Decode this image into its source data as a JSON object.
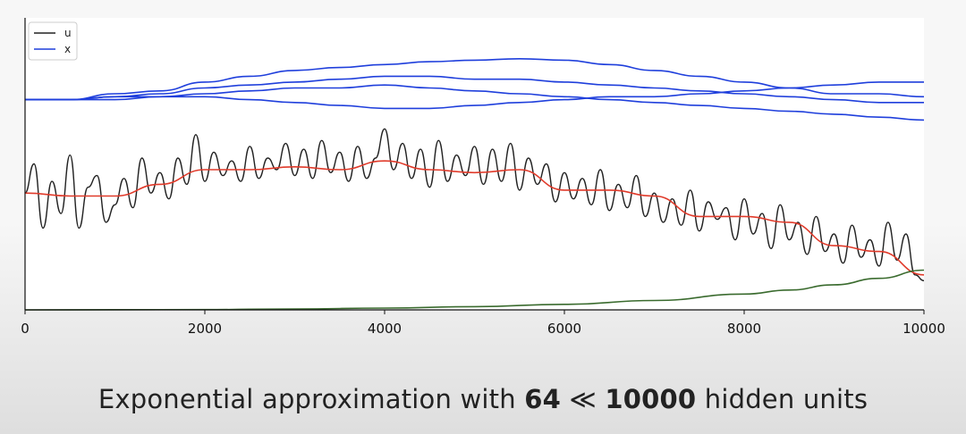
{
  "chart_data": {
    "type": "line",
    "xlim": [
      0,
      10000
    ],
    "xticks": [
      0,
      2000,
      4000,
      6000,
      8000,
      10000
    ],
    "tick_labels": [
      "0",
      "2000",
      "4000",
      "6000",
      "8000",
      "10000"
    ],
    "legend": {
      "placement": "top-left",
      "entries": [
        {
          "label": "u",
          "color": "#222222"
        },
        {
          "label": "x",
          "color": "#1f3fdc"
        }
      ]
    },
    "series": [
      {
        "name": "x",
        "color": "#1f3fdc",
        "x": [
          0,
          500,
          1000,
          1500,
          2000,
          2500,
          3000,
          3500,
          4000,
          4500,
          5000,
          5500,
          6000,
          6500,
          7000,
          7500,
          8000,
          8500,
          9000,
          9500,
          10000
        ],
        "values": [
          0.72,
          0.72,
          0.74,
          0.75,
          0.78,
          0.8,
          0.82,
          0.83,
          0.84,
          0.85,
          0.855,
          0.86,
          0.855,
          0.84,
          0.82,
          0.8,
          0.78,
          0.76,
          0.74,
          0.74,
          0.73
        ]
      },
      {
        "name": "x",
        "color": "#1f3fdc",
        "x": [
          0,
          500,
          1000,
          1500,
          2000,
          2500,
          3000,
          3500,
          4000,
          4500,
          5000,
          5500,
          6000,
          6500,
          7000,
          7500,
          8000,
          8500,
          9000,
          9500,
          10000
        ],
        "values": [
          0.72,
          0.72,
          0.73,
          0.74,
          0.76,
          0.77,
          0.78,
          0.79,
          0.8,
          0.8,
          0.79,
          0.79,
          0.78,
          0.77,
          0.76,
          0.75,
          0.74,
          0.73,
          0.72,
          0.71,
          0.71
        ]
      },
      {
        "name": "x",
        "color": "#1f3fdc",
        "x": [
          0,
          500,
          1000,
          1500,
          2000,
          2500,
          3000,
          3500,
          4000,
          4500,
          5000,
          5500,
          6000,
          6500,
          7000,
          7500,
          8000,
          8500,
          9000,
          9500,
          10000
        ],
        "values": [
          0.72,
          0.72,
          0.72,
          0.73,
          0.74,
          0.75,
          0.76,
          0.76,
          0.77,
          0.76,
          0.75,
          0.74,
          0.73,
          0.72,
          0.71,
          0.7,
          0.69,
          0.68,
          0.67,
          0.66,
          0.65
        ]
      },
      {
        "name": "x",
        "color": "#1f3fdc",
        "x": [
          0,
          500,
          1000,
          1500,
          2000,
          2500,
          3000,
          3500,
          4000,
          4500,
          5000,
          5500,
          6000,
          6500,
          7000,
          7500,
          8000,
          8500,
          9000,
          9500,
          10000
        ],
        "values": [
          0.72,
          0.72,
          0.73,
          0.73,
          0.73,
          0.72,
          0.71,
          0.7,
          0.69,
          0.69,
          0.7,
          0.71,
          0.72,
          0.73,
          0.73,
          0.74,
          0.75,
          0.76,
          0.77,
          0.78,
          0.78
        ]
      },
      {
        "name": "u",
        "color": "#222222",
        "x": [
          0,
          100,
          200,
          300,
          400,
          500,
          600,
          700,
          800,
          900,
          1000,
          1100,
          1200,
          1300,
          1400,
          1500,
          1600,
          1700,
          1800,
          1900,
          2000,
          2100,
          2200,
          2300,
          2400,
          2500,
          2600,
          2700,
          2800,
          2900,
          3000,
          3100,
          3200,
          3300,
          3400,
          3500,
          3600,
          3700,
          3800,
          3900,
          4000,
          4100,
          4200,
          4300,
          4400,
          4500,
          4600,
          4700,
          4800,
          4900,
          5000,
          5100,
          5200,
          5300,
          5400,
          5500,
          5600,
          5700,
          5800,
          5900,
          6000,
          6100,
          6200,
          6300,
          6400,
          6500,
          6600,
          6700,
          6800,
          6900,
          7000,
          7100,
          7200,
          7300,
          7400,
          7500,
          7600,
          7700,
          7800,
          7900,
          8000,
          8100,
          8200,
          8300,
          8400,
          8500,
          8600,
          8700,
          8800,
          8900,
          9000,
          9100,
          9200,
          9300,
          9400,
          9500,
          9600,
          9700,
          9800,
          9900,
          10000
        ],
        "values": [
          0.4,
          0.5,
          0.28,
          0.44,
          0.33,
          0.53,
          0.28,
          0.42,
          0.46,
          0.3,
          0.36,
          0.45,
          0.35,
          0.52,
          0.4,
          0.47,
          0.38,
          0.52,
          0.43,
          0.6,
          0.44,
          0.54,
          0.46,
          0.51,
          0.44,
          0.56,
          0.45,
          0.52,
          0.48,
          0.57,
          0.46,
          0.55,
          0.45,
          0.58,
          0.47,
          0.54,
          0.44,
          0.56,
          0.45,
          0.52,
          0.62,
          0.48,
          0.57,
          0.45,
          0.55,
          0.42,
          0.58,
          0.44,
          0.53,
          0.46,
          0.56,
          0.43,
          0.55,
          0.44,
          0.57,
          0.41,
          0.52,
          0.43,
          0.5,
          0.37,
          0.47,
          0.38,
          0.45,
          0.36,
          0.48,
          0.34,
          0.43,
          0.35,
          0.46,
          0.32,
          0.4,
          0.3,
          0.38,
          0.29,
          0.41,
          0.27,
          0.37,
          0.31,
          0.35,
          0.24,
          0.38,
          0.26,
          0.33,
          0.21,
          0.36,
          0.24,
          0.3,
          0.19,
          0.32,
          0.2,
          0.26,
          0.16,
          0.29,
          0.18,
          0.24,
          0.15,
          0.3,
          0.17,
          0.26,
          0.12,
          0.1
        ]
      },
      {
        "name": "",
        "color": "#e03a2a",
        "x": [
          0,
          500,
          1000,
          1500,
          2000,
          2500,
          3000,
          3500,
          4000,
          4500,
          5000,
          5500,
          6000,
          6500,
          7000,
          7500,
          8000,
          8500,
          9000,
          9500,
          10000
        ],
        "values": [
          0.4,
          0.39,
          0.39,
          0.43,
          0.48,
          0.48,
          0.49,
          0.48,
          0.51,
          0.48,
          0.47,
          0.48,
          0.41,
          0.41,
          0.39,
          0.32,
          0.32,
          0.3,
          0.22,
          0.2,
          0.12
        ]
      },
      {
        "name": "",
        "color": "#3a6b2e",
        "x": [
          0,
          1000,
          2000,
          3000,
          4000,
          5000,
          6000,
          7000,
          8000,
          8500,
          9000,
          9500,
          10000
        ],
        "values": [
          0.0,
          0.0005,
          0.001,
          0.003,
          0.006,
          0.011,
          0.019,
          0.032,
          0.054,
          0.068,
          0.086,
          0.108,
          0.136
        ]
      }
    ]
  },
  "caption": {
    "prefix": "Exponential approximation with ",
    "bold_1": "64",
    "middle": " ≪ ",
    "bold_2": "10000",
    "suffix": " hidden units"
  }
}
